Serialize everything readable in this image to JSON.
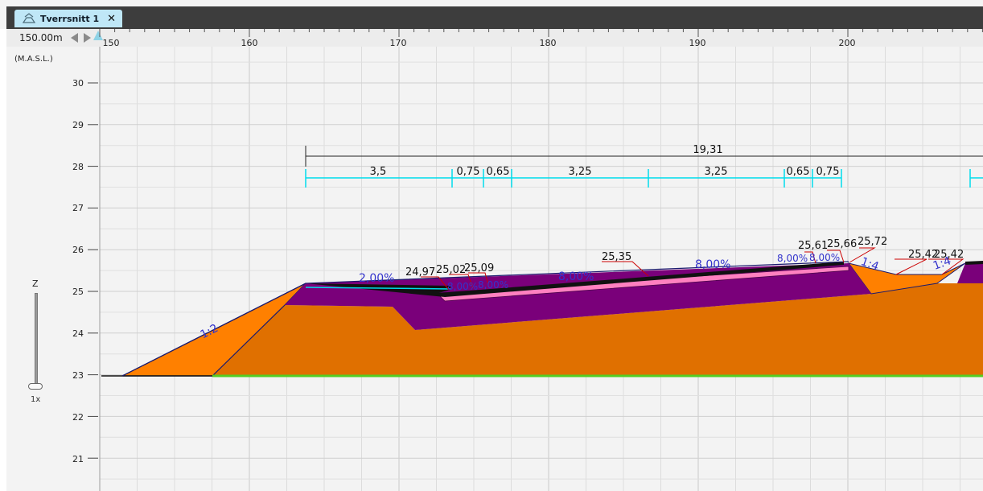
{
  "tab": {
    "title": "Tverrsnitt 1",
    "icon": "cross-section-icon",
    "close_icon": "close-icon"
  },
  "toolbar": {
    "scale": "150.00m",
    "left_icon": "arrow-left-icon",
    "right_icon": "arrow-right-icon"
  },
  "axes": {
    "y_units": "(M.A.S.L.)",
    "x_ticks": [
      "150",
      "160",
      "170",
      "180",
      "190",
      "200"
    ],
    "y_ticks": [
      "30",
      "29",
      "28",
      "27",
      "26",
      "25",
      "24",
      "23",
      "22",
      "21"
    ]
  },
  "zoom": {
    "axis_label": "Z",
    "level_label": "1x",
    "level": 0.0
  },
  "dimensions": {
    "total": "19,31",
    "segments": [
      "3,5",
      "0,75",
      "0,65",
      "3,25",
      "3,25",
      "0,65",
      "0,75"
    ]
  },
  "elevations": [
    "24,97",
    "25,02",
    "25,09",
    "25,35",
    "25,61",
    "25,66",
    "25,72",
    "25,42",
    "25,42"
  ],
  "slopes": [
    "1:2",
    "2,00%",
    "8,00%",
    "8,00%",
    "8,00%",
    "8,00%",
    "8,00%",
    "8,00%",
    "1:4",
    "1:4"
  ],
  "colors": {
    "fill_material": "#e07000",
    "embankment": "#ff8000",
    "subbase": "#7a007a",
    "asphalt": "#111111",
    "geotextile": "#ff80c0",
    "ground_line": "#55cc22",
    "dimension_cyan": "#00dcec",
    "slope_text": "#3333cc",
    "leader": "#cc0000"
  }
}
